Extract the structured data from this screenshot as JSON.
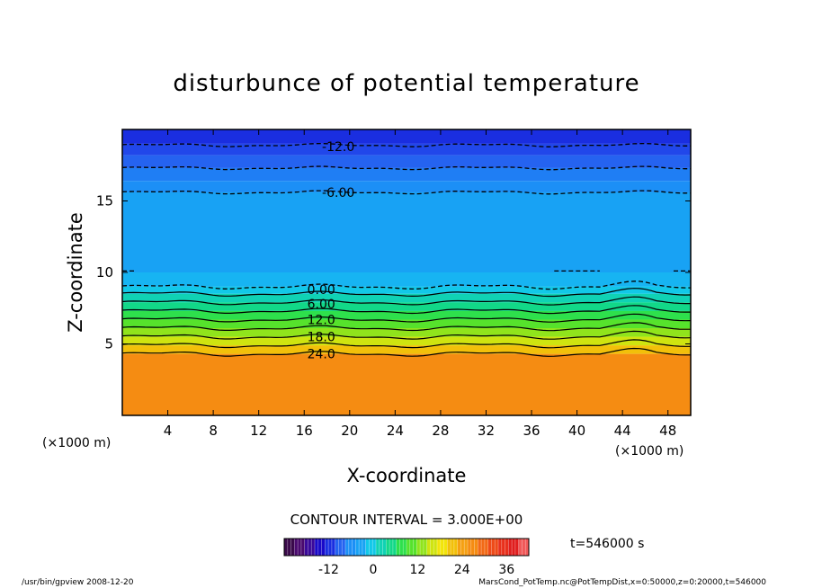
{
  "chart_data": {
    "type": "heatmap",
    "title": "disturbunce of potential temperature",
    "xlabel": "X-coordinate",
    "ylabel": "Z-coordinate",
    "x_unit": "(×1000 m)",
    "z_unit": "(×1000 m)",
    "xlim": [
      0,
      50
    ],
    "ylim": [
      0,
      20
    ],
    "x_ticks": [
      4,
      8,
      12,
      16,
      20,
      24,
      28,
      32,
      36,
      40,
      44,
      48
    ],
    "y_ticks": [
      5,
      10,
      15
    ],
    "contour_interval_text": "CONTOUR INTERVAL = 3.000E+00",
    "time_text": "t=546000 s",
    "contour_labels": [
      {
        "text": "-12.0",
        "x": 19,
        "z": 18.8
      },
      {
        "text": "-6.00",
        "x": 19,
        "z": 15.6
      },
      {
        "text": "0.00",
        "x": 17.5,
        "z": 8.8
      },
      {
        "text": "6.00",
        "x": 17.5,
        "z": 7.8
      },
      {
        "text": "12.0",
        "x": 17.5,
        "z": 6.7
      },
      {
        "text": "18.0",
        "x": 17.5,
        "z": 5.5
      },
      {
        "text": "24.0",
        "x": 17.5,
        "z": 4.3
      }
    ],
    "contour_lines": [
      {
        "value": -12,
        "z": 18.9,
        "dashed": true
      },
      {
        "value": -9,
        "z": 17.3,
        "dashed": true
      },
      {
        "value": -6,
        "z": 15.6,
        "dashed": true
      },
      {
        "value": -3,
        "z": 10.1,
        "dashed": true,
        "partial": true
      },
      {
        "value": 0,
        "z": 9.0,
        "dashed": true
      },
      {
        "value": 3,
        "z": 8.5,
        "dashed": false
      },
      {
        "value": 6,
        "z": 7.9,
        "dashed": false
      },
      {
        "value": 9,
        "z": 7.3,
        "dashed": false
      },
      {
        "value": 12,
        "z": 6.7,
        "dashed": false
      },
      {
        "value": 15,
        "z": 6.1,
        "dashed": false
      },
      {
        "value": 18,
        "z": 5.5,
        "dashed": false
      },
      {
        "value": 21,
        "z": 4.9,
        "dashed": false
      },
      {
        "value": 24,
        "z": 4.3,
        "dashed": false
      }
    ],
    "color_bands": [
      {
        "z0": 19.0,
        "z1": 20.0,
        "color": "#1a2ee0"
      },
      {
        "z0": 18.2,
        "z1": 19.0,
        "color": "#2147ea"
      },
      {
        "z0": 17.3,
        "z1": 18.2,
        "color": "#2563f0"
      },
      {
        "z0": 16.4,
        "z1": 17.3,
        "color": "#1f7ef4"
      },
      {
        "z0": 15.6,
        "z1": 16.4,
        "color": "#1c8ff6"
      },
      {
        "z0": 10.0,
        "z1": 15.6,
        "color": "#18a2f4"
      },
      {
        "z0": 9.0,
        "z1": 10.0,
        "color": "#17b4f2"
      },
      {
        "z0": 8.5,
        "z1": 9.0,
        "color": "#12c8e8"
      },
      {
        "z0": 7.9,
        "z1": 8.5,
        "color": "#10d2b4"
      },
      {
        "z0": 7.3,
        "z1": 7.9,
        "color": "#12d888"
      },
      {
        "z0": 6.7,
        "z1": 7.3,
        "color": "#2ee04c"
      },
      {
        "z0": 6.1,
        "z1": 6.7,
        "color": "#56e22c"
      },
      {
        "z0": 5.5,
        "z1": 6.1,
        "color": "#90e41c"
      },
      {
        "z0": 4.9,
        "z1": 5.5,
        "color": "#cfe410"
      },
      {
        "z0": 4.3,
        "z1": 4.9,
        "color": "#f2c00a"
      },
      {
        "z0": 0.0,
        "z1": 4.3,
        "color": "#f58c12"
      }
    ],
    "colorbar": {
      "ticks": [
        "-12",
        "0",
        "12",
        "24",
        "36"
      ],
      "tick_values": [
        -12,
        0,
        12,
        24,
        36
      ],
      "min": -24,
      "max": 42,
      "colors": [
        "#3a0a4a",
        "#4a0a6e",
        "#3a0a9a",
        "#1a0ac8",
        "#1a2ee0",
        "#2563f0",
        "#1c8ff6",
        "#18a2f4",
        "#12c8e8",
        "#10d2b4",
        "#12d888",
        "#2ee04c",
        "#56e22c",
        "#90e41c",
        "#cfe410",
        "#f2e40a",
        "#f2c00a",
        "#f5a012",
        "#f58c12",
        "#f26a16",
        "#ee4a18",
        "#e8301c",
        "#e01e1e",
        "#f05858"
      ]
    }
  },
  "footer": {
    "left": "/usr/bin/gpview   2008-12-20",
    "right": "MarsCond_PotTemp.nc@PotTempDist,x=0:50000,z=0:20000,t=546000"
  }
}
